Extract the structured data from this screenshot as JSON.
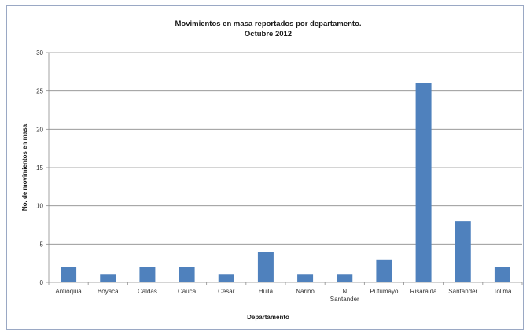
{
  "chart_data": {
    "type": "bar",
    "title": "Movimientos en masa reportados por departamento.",
    "subtitle": "Octubre  2012",
    "xlabel": "Departamento",
    "ylabel": "No. de movimientos en masa",
    "ylim": [
      0,
      30
    ],
    "yticks": [
      0,
      5,
      10,
      15,
      20,
      25,
      30
    ],
    "grid": true,
    "legend": "none",
    "bar_color": "#4f81bd",
    "categories": [
      "Antioquia",
      "Boyaca",
      "Caldas",
      "Cauca",
      "Cesar",
      "Huila",
      "Nariño",
      "N Santander",
      "Putumayo",
      "Risaralda",
      "Santander",
      "Tolima"
    ],
    "values": [
      2,
      1,
      2,
      2,
      1,
      4,
      1,
      1,
      3,
      26,
      8,
      2
    ]
  }
}
